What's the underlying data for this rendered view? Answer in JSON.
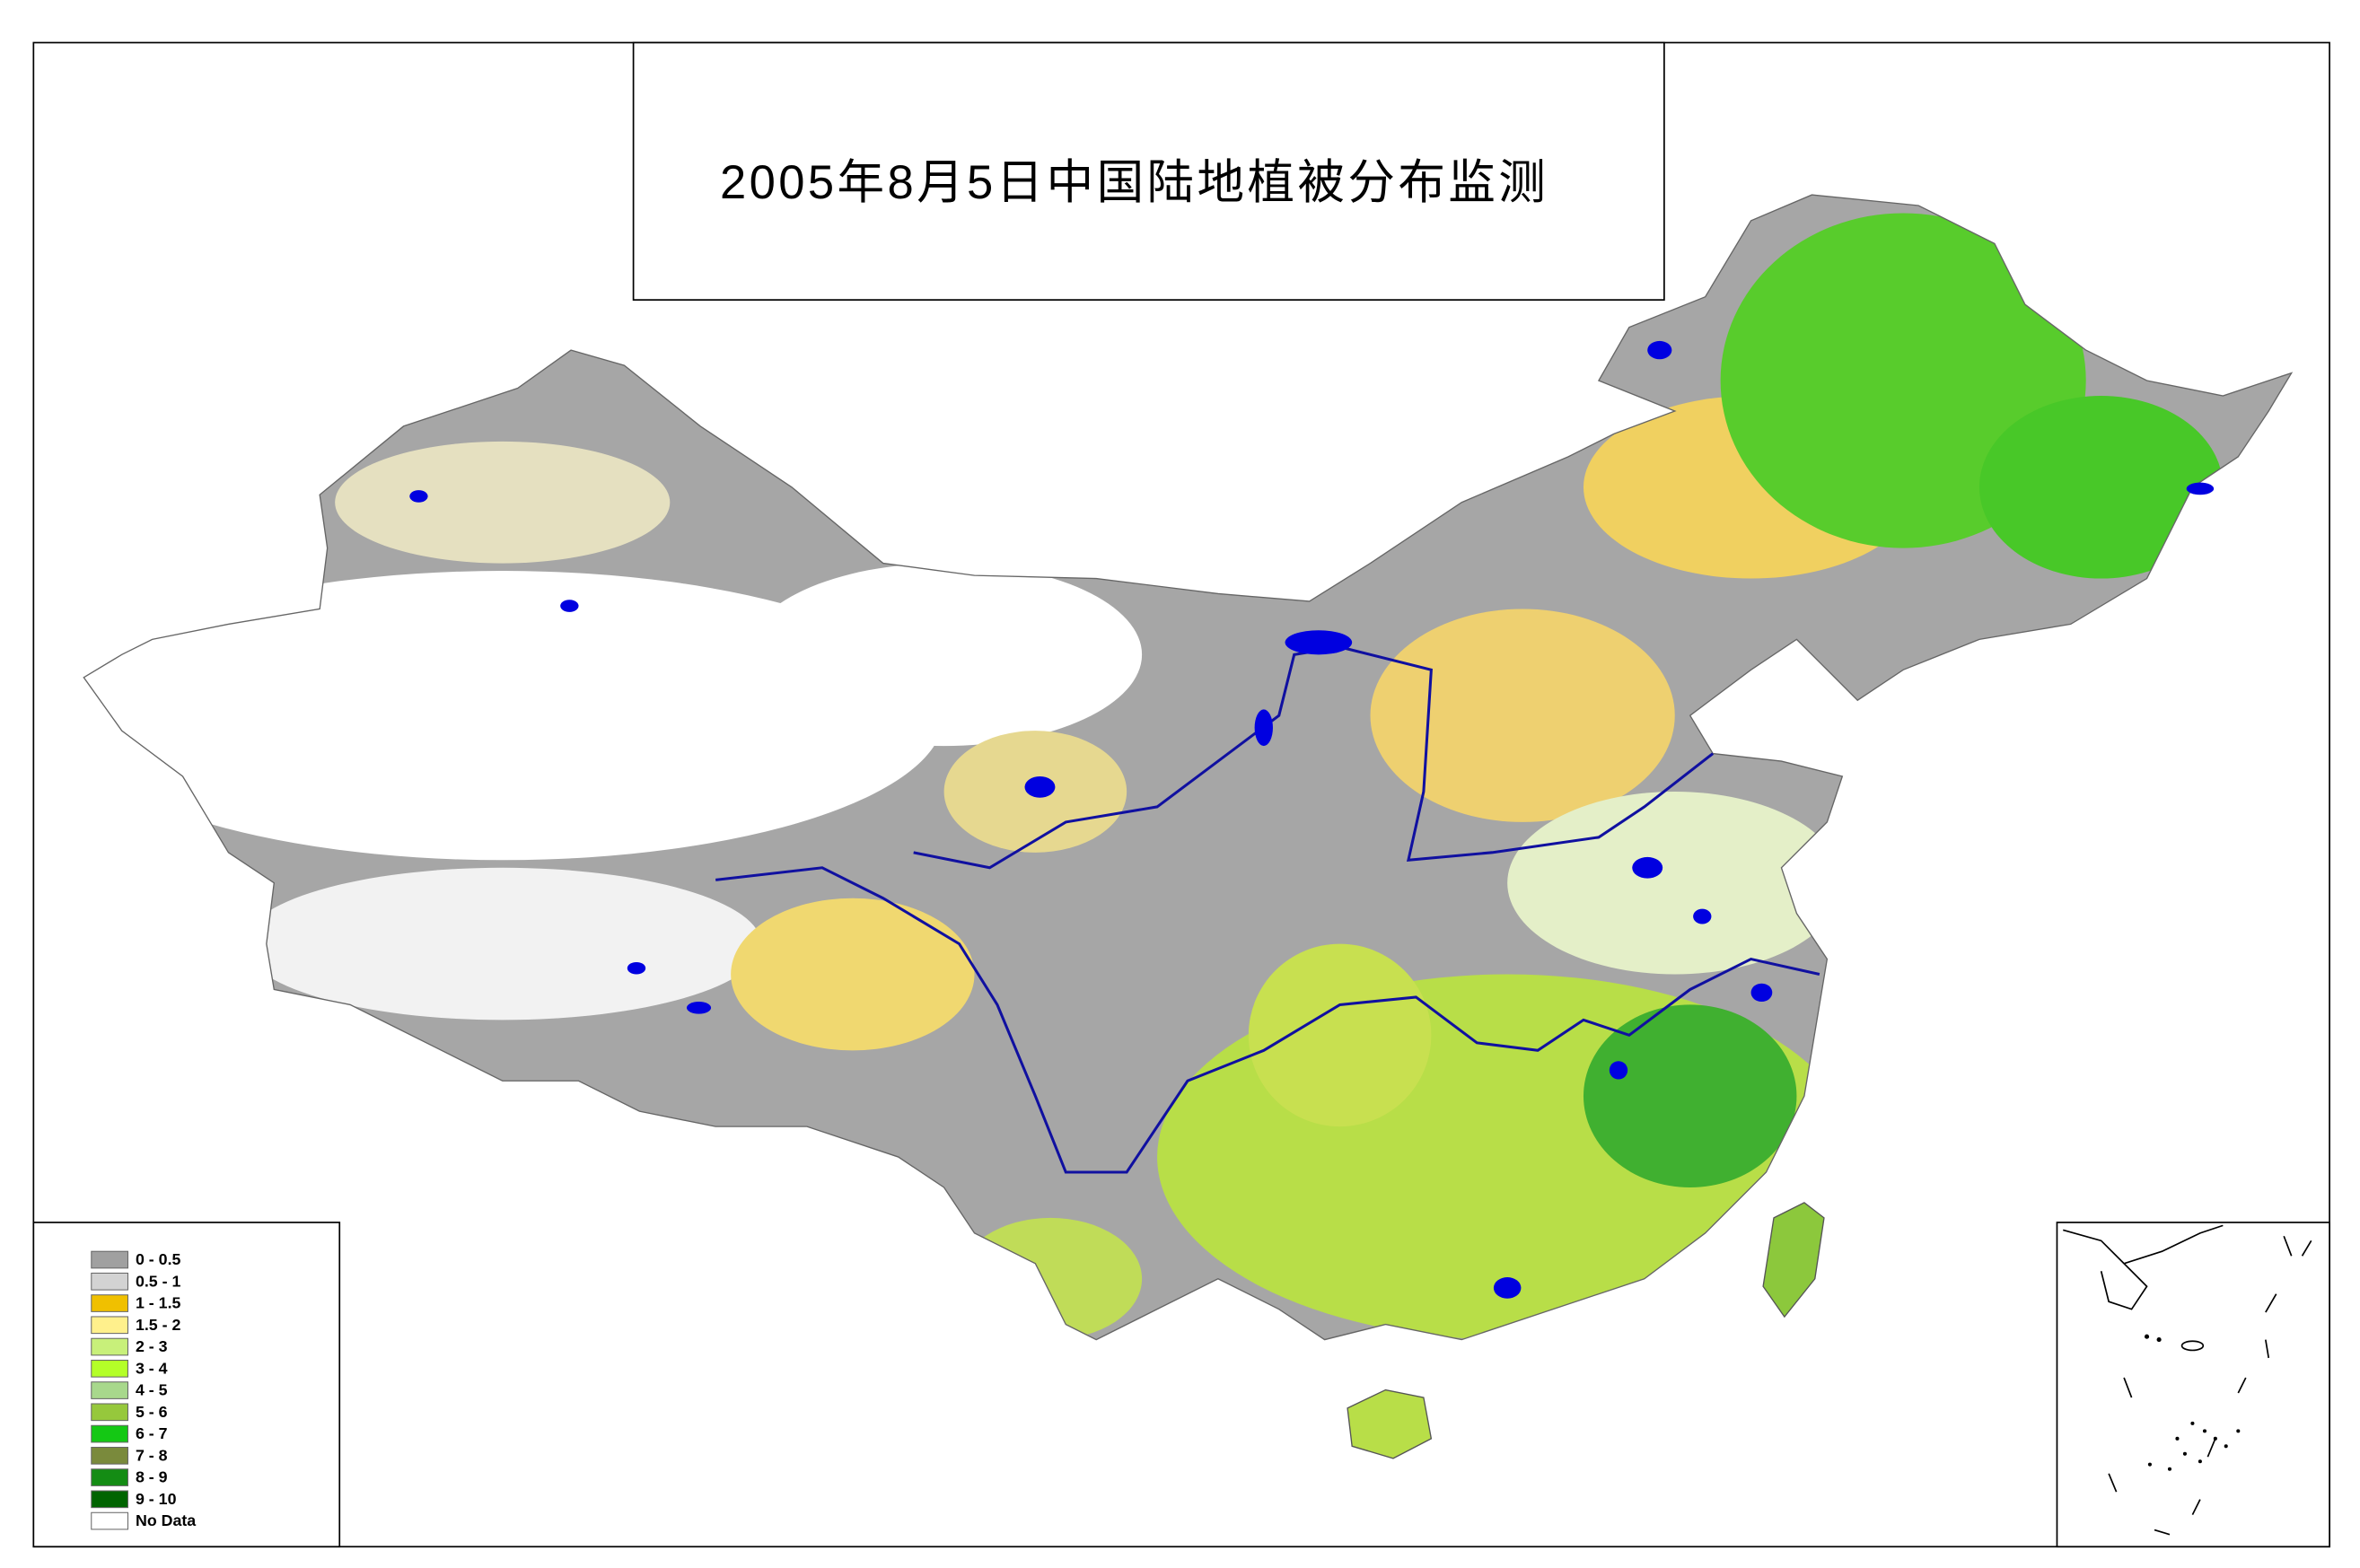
{
  "title": "2005年8月5日中国陆地植被分布监测",
  "legend": {
    "items": [
      {
        "label": "0 - 0.5",
        "color": "#a0a0a0"
      },
      {
        "label": "0.5 - 1",
        "color": "#d3d3d3"
      },
      {
        "label": "1 - 1.5",
        "color": "#f0c000"
      },
      {
        "label": "1.5 - 2",
        "color": "#fff08c"
      },
      {
        "label": "2 - 3",
        "color": "#c8f07a"
      },
      {
        "label": "3 - 4",
        "color": "#b4ff28"
      },
      {
        "label": "4 - 5",
        "color": "#a8d88c"
      },
      {
        "label": "5 - 6",
        "color": "#96c83c"
      },
      {
        "label": "6 - 7",
        "color": "#14c814"
      },
      {
        "label": "7 - 8",
        "color": "#7a8a3c"
      },
      {
        "label": "8 - 9",
        "color": "#148c14"
      },
      {
        "label": "9 - 10",
        "color": "#006400"
      },
      {
        "label": "No Data",
        "color": "#ffffff"
      }
    ]
  }
}
